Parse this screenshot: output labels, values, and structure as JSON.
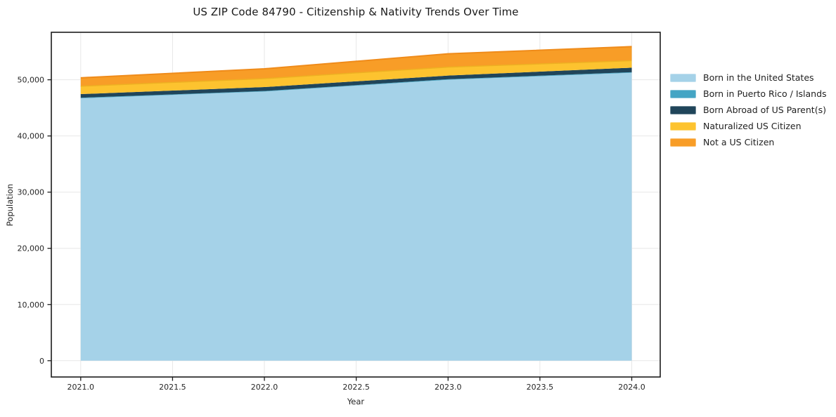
{
  "title": "US ZIP Code 84790 - Citizenship & Nativity Trends Over Time",
  "chart_data": {
    "type": "area",
    "stacked": true,
    "title": "US ZIP Code 84790 - Citizenship & Nativity Trends Over Time",
    "xlabel": "Year",
    "ylabel": "Population",
    "x": [
      2021,
      2022,
      2023,
      2024
    ],
    "series": [
      {
        "name": "Born in the United States",
        "color": "#a5d2e8",
        "values": [
          46700,
          47900,
          50000,
          51250
        ]
      },
      {
        "name": "Born in Puerto Rico / Islands",
        "color": "#44a5c4",
        "values": [
          100,
          100,
          100,
          100
        ]
      },
      {
        "name": "Born Abroad of US Parent(s)",
        "color": "#20455a",
        "values": [
          650,
          700,
          650,
          800
        ]
      },
      {
        "name": "Naturalized US Citizen",
        "color": "#fdc32f",
        "edge": "#eeb022",
        "values": [
          1400,
          1500,
          1500,
          1250
        ]
      },
      {
        "name": "Not a US Citizen",
        "color": "#f89d27",
        "edge": "#ef8b1a",
        "values": [
          1500,
          1750,
          2375,
          2500
        ]
      }
    ],
    "x_ticks": [
      "2021.0",
      "2021.5",
      "2022.0",
      "2022.5",
      "2023.0",
      "2023.5",
      "2024.0"
    ],
    "x_tick_values": [
      2021,
      2021.5,
      2022,
      2022.5,
      2023,
      2023.5,
      2024
    ],
    "y_ticks": [
      "0",
      "10,000",
      "20,000",
      "30,000",
      "40,000",
      "50,000"
    ],
    "y_tick_values": [
      0,
      10000,
      20000,
      30000,
      40000,
      50000
    ],
    "xlim": [
      2020.84,
      2024.155
    ],
    "ylim": [
      -2900,
      58450
    ],
    "grid": true,
    "grid_color": "#e7e7e7",
    "spine_color": "#1c1c1c",
    "tick_label_color": "#262626",
    "legend_position": "right"
  }
}
